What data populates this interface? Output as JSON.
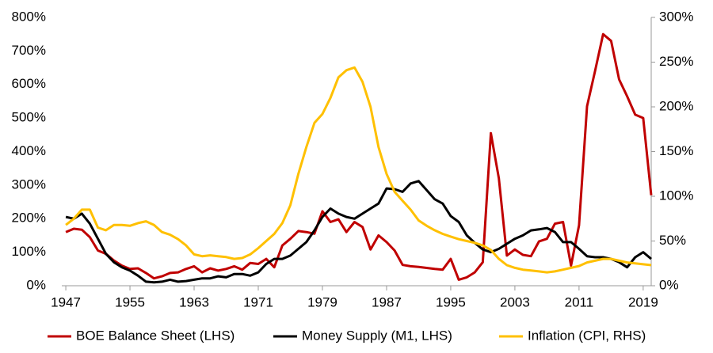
{
  "chart_data": {
    "type": "line",
    "x": [
      1947,
      1948,
      1949,
      1950,
      1951,
      1952,
      1953,
      1954,
      1955,
      1956,
      1957,
      1958,
      1959,
      1960,
      1961,
      1962,
      1963,
      1964,
      1965,
      1966,
      1967,
      1968,
      1969,
      1970,
      1971,
      1972,
      1973,
      1974,
      1975,
      1976,
      1977,
      1978,
      1979,
      1980,
      1981,
      1982,
      1983,
      1984,
      1985,
      1986,
      1987,
      1988,
      1989,
      1990,
      1991,
      1992,
      1993,
      1994,
      1995,
      1996,
      1997,
      1998,
      1999,
      2000,
      2001,
      2002,
      2003,
      2004,
      2005,
      2006,
      2007,
      2008,
      2009,
      2010,
      2011,
      2012,
      2013,
      2014,
      2015,
      2016,
      2017,
      2018,
      2019,
      2020
    ],
    "series": [
      {
        "name": "BOE Balance Sheet (LHS)",
        "color": "#c00000",
        "values": [
          160,
          170,
          167,
          145,
          105,
          95,
          75,
          60,
          50,
          52,
          38,
          22,
          28,
          38,
          40,
          50,
          58,
          40,
          52,
          45,
          50,
          58,
          48,
          68,
          65,
          80,
          55,
          120,
          140,
          163,
          160,
          155,
          222,
          190,
          198,
          160,
          190,
          175,
          108,
          150,
          130,
          105,
          62,
          58,
          56,
          53,
          50,
          48,
          80,
          18,
          25,
          40,
          70,
          455,
          320,
          90,
          108,
          92,
          88,
          132,
          140,
          185,
          190,
          60,
          180,
          535,
          640,
          750,
          730,
          615,
          565,
          510,
          500,
          270
        ]
      },
      {
        "name": "Money Supply (M1, LHS)",
        "color": "#000000",
        "values": [
          205,
          200,
          215,
          185,
          140,
          95,
          70,
          55,
          45,
          30,
          12,
          10,
          12,
          18,
          12,
          14,
          18,
          22,
          22,
          28,
          25,
          35,
          35,
          30,
          40,
          65,
          80,
          80,
          90,
          110,
          130,
          165,
          205,
          230,
          215,
          205,
          200,
          215,
          230,
          245,
          290,
          288,
          280,
          305,
          312,
          285,
          258,
          245,
          208,
          190,
          150,
          128,
          108,
          100,
          110,
          125,
          140,
          150,
          165,
          168,
          172,
          160,
          130,
          130,
          110,
          88,
          85,
          85,
          80,
          70,
          55,
          85,
          100,
          80
        ]
      },
      {
        "name": "Inflation (CPI, RHS)",
        "color": "#ffc000",
        "axis": "y2",
        "values": [
          68,
          75,
          85,
          85,
          65,
          62,
          68,
          68,
          67,
          70,
          72,
          68,
          60,
          57,
          52,
          45,
          35,
          33,
          34,
          33,
          32,
          30,
          31,
          35,
          42,
          50,
          58,
          70,
          90,
          125,
          155,
          182,
          192,
          210,
          233,
          241,
          244,
          228,
          200,
          155,
          125,
          105,
          95,
          85,
          73,
          67,
          62,
          58,
          55,
          52,
          50,
          48,
          45,
          40,
          30,
          23,
          20,
          18,
          17,
          16,
          15,
          16,
          18,
          20,
          22,
          26,
          28,
          30,
          30,
          28,
          26,
          25,
          24,
          23
        ]
      }
    ],
    "xlim": [
      1946.5,
      2020
    ],
    "xticks": [
      1947,
      1955,
      1963,
      1971,
      1979,
      1987,
      1995,
      2003,
      2011,
      2019
    ],
    "ylim": [
      0,
      800
    ],
    "yticks": [
      {
        "value": 0,
        "label": "0%"
      },
      {
        "value": 100,
        "label": "100%"
      },
      {
        "value": 200,
        "label": "200%"
      },
      {
        "value": 300,
        "label": "300%"
      },
      {
        "value": 400,
        "label": "400%"
      },
      {
        "value": 500,
        "label": "500%"
      },
      {
        "value": 600,
        "label": "600%"
      },
      {
        "value": 700,
        "label": "700%"
      },
      {
        "value": 800,
        "label": "800%"
      }
    ],
    "y2lim": [
      0,
      300
    ],
    "y2ticks": [
      {
        "value": 0,
        "label": "0%"
      },
      {
        "value": 50,
        "label": "50%"
      },
      {
        "value": 100,
        "label": "100%"
      },
      {
        "value": 150,
        "label": "150%"
      },
      {
        "value": 200,
        "label": "200%"
      },
      {
        "value": 250,
        "label": "250%"
      },
      {
        "value": 300,
        "label": "300%"
      }
    ],
    "legend": "bottom"
  }
}
